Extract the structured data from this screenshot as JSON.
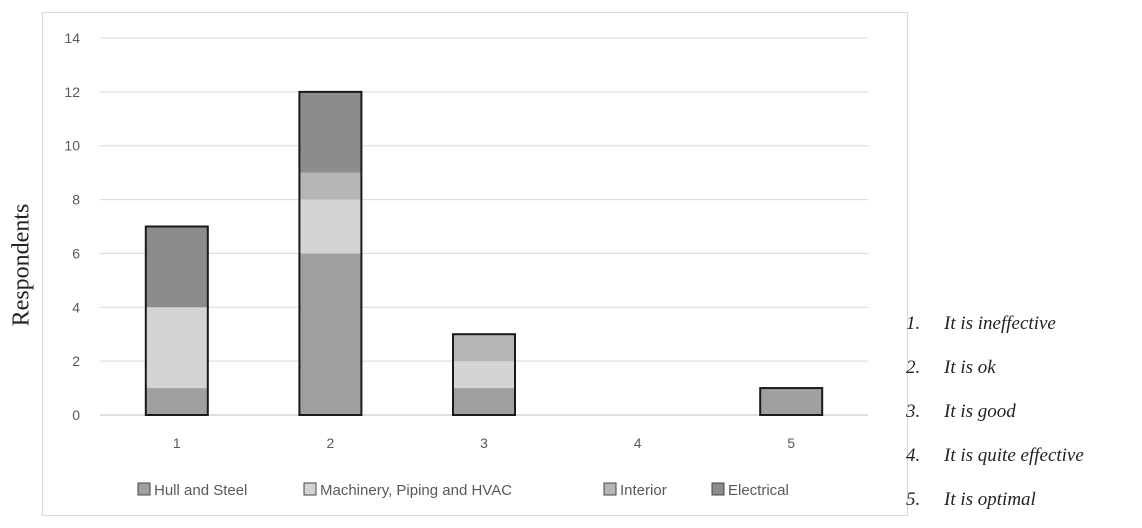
{
  "chart_data": {
    "type": "bar",
    "stacked": true,
    "categories": [
      "1",
      "2",
      "3",
      "4",
      "5"
    ],
    "ylabel": "Respondents",
    "xlabel": "",
    "ylim": [
      0,
      14
    ],
    "yticks": [
      0,
      2,
      4,
      6,
      8,
      10,
      12,
      14
    ],
    "grid": true,
    "legend_position": "bottom",
    "series": [
      {
        "name": "Hull and Steel",
        "color": "#a0a0a0",
        "values": [
          1,
          6,
          1,
          0,
          1
        ]
      },
      {
        "name": "Machinery, Piping and HVAC",
        "color": "#d4d4d4",
        "values": [
          3,
          2,
          1,
          0,
          0
        ]
      },
      {
        "name": "Interior",
        "color": "#b6b6b6",
        "values": [
          0,
          1,
          1,
          0,
          0
        ]
      },
      {
        "name": "Electrical",
        "color": "#8c8c8c",
        "values": [
          3,
          3,
          0,
          0,
          0
        ]
      }
    ]
  },
  "notes": [
    {
      "num": "1.",
      "text": "It is ineffective"
    },
    {
      "num": "2.",
      "text": "It is ok"
    },
    {
      "num": "3.",
      "text": "It is good"
    },
    {
      "num": "4.",
      "text": "It is quite effective"
    },
    {
      "num": "5.",
      "text": "It is optimal"
    }
  ]
}
